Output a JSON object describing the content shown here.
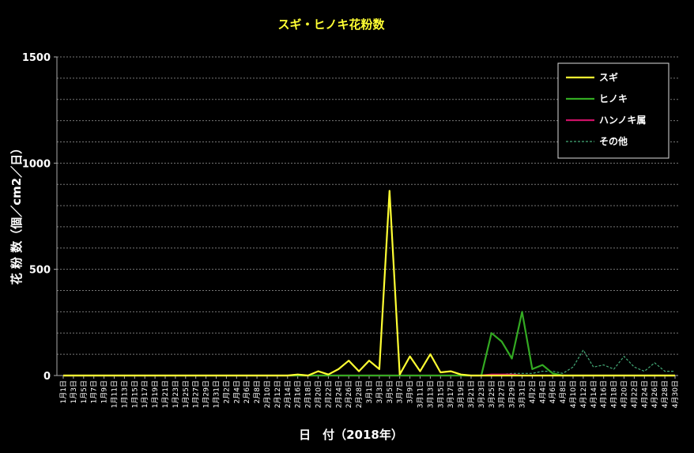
{
  "chart_data": {
    "type": "line",
    "title": "スギ・ヒノキ花粉数",
    "xlabel": "日　付（2018年）",
    "ylabel": "花 粉 数（個／cm2／日）",
    "ylim": [
      0,
      1500
    ],
    "yticks": [
      "0",
      "500",
      "1000",
      "1500"
    ],
    "grid": true,
    "legend_position": "top-right",
    "colors": {
      "スギ": "#ffff33",
      "ヒノキ": "#33aa22",
      "ハンノキ属": "#cc1166",
      "その他": "#44aa77"
    },
    "categories": [
      "1月1日",
      "1月3日",
      "1月5日",
      "1月7日",
      "1月9日",
      "1月11日",
      "1月13日",
      "1月15日",
      "1月17日",
      "1月19日",
      "1月21日",
      "1月23日",
      "1月25日",
      "1月27日",
      "1月29日",
      "1月31日",
      "2月2日",
      "2月4日",
      "2月6日",
      "2月8日",
      "2月10日",
      "2月12日",
      "2月14日",
      "2月16日",
      "2月18日",
      "2月20日",
      "2月22日",
      "2月24日",
      "2月26日",
      "2月28日",
      "3月1日",
      "3月3日",
      "3月5日",
      "3月7日",
      "3月9日",
      "3月11日",
      "3月13日",
      "3月15日",
      "3月17日",
      "3月19日",
      "3月21日",
      "3月23日",
      "3月25日",
      "3月27日",
      "3月29日",
      "3月31日",
      "4月2日",
      "4月4日",
      "4月6日",
      "4月8日",
      "4月10日",
      "4月12日",
      "4月14日",
      "4月16日",
      "4月18日",
      "4月20日",
      "4月22日",
      "4月24日",
      "4月26日",
      "4月28日",
      "4月30日"
    ],
    "series": [
      {
        "name": "スギ",
        "values": [
          0,
          0,
          0,
          0,
          0,
          0,
          0,
          0,
          0,
          0,
          0,
          0,
          0,
          0,
          0,
          0,
          0,
          0,
          0,
          0,
          0,
          0,
          0,
          5,
          0,
          20,
          5,
          30,
          70,
          20,
          70,
          30,
          870,
          5,
          90,
          20,
          100,
          15,
          20,
          5,
          0,
          0,
          0,
          0,
          0,
          0,
          0,
          0,
          0,
          0,
          0,
          0,
          0,
          0,
          0,
          0,
          0,
          0,
          0,
          0,
          0
        ]
      },
      {
        "name": "ヒノキ",
        "values": [
          0,
          0,
          0,
          0,
          0,
          0,
          0,
          0,
          0,
          0,
          0,
          0,
          0,
          0,
          0,
          0,
          0,
          0,
          0,
          0,
          0,
          0,
          0,
          0,
          0,
          0,
          0,
          0,
          0,
          0,
          0,
          0,
          0,
          0,
          0,
          0,
          0,
          0,
          0,
          0,
          0,
          0,
          200,
          160,
          80,
          300,
          30,
          50,
          10,
          0,
          0,
          0,
          0,
          0,
          0,
          0,
          0,
          0,
          0,
          0,
          0
        ]
      },
      {
        "name": "ハンノキ属",
        "values": [
          0,
          0,
          0,
          0,
          0,
          0,
          0,
          0,
          0,
          0,
          0,
          0,
          0,
          0,
          0,
          0,
          0,
          0,
          0,
          0,
          0,
          0,
          0,
          0,
          0,
          0,
          0,
          0,
          0,
          0,
          0,
          0,
          0,
          0,
          0,
          0,
          0,
          0,
          0,
          0,
          0,
          0,
          5,
          5,
          5,
          0,
          0,
          0,
          0,
          0,
          0,
          0,
          0,
          0,
          0,
          0,
          0,
          0,
          0,
          0,
          0
        ]
      },
      {
        "name": "その他",
        "values": [
          0,
          0,
          0,
          0,
          0,
          0,
          0,
          0,
          0,
          0,
          0,
          0,
          0,
          0,
          0,
          0,
          0,
          0,
          0,
          0,
          0,
          0,
          0,
          0,
          0,
          0,
          0,
          0,
          0,
          0,
          0,
          0,
          0,
          0,
          0,
          0,
          0,
          0,
          0,
          0,
          0,
          0,
          5,
          5,
          10,
          10,
          10,
          20,
          20,
          10,
          40,
          120,
          40,
          50,
          30,
          90,
          40,
          20,
          60,
          20,
          20
        ]
      }
    ]
  }
}
